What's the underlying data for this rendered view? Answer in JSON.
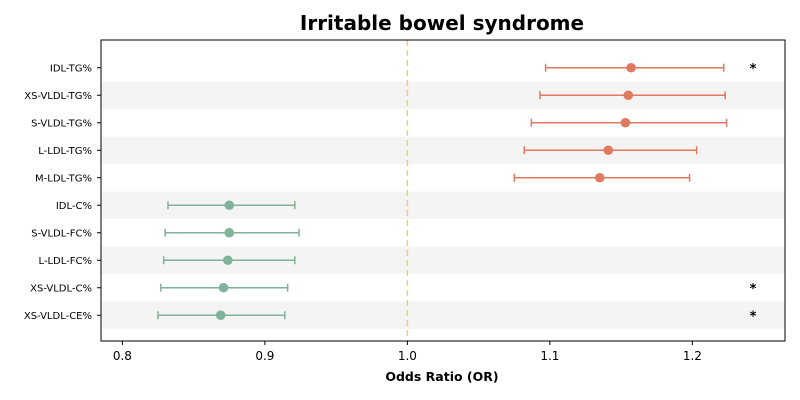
{
  "chart_data": {
    "type": "forest",
    "title": "Irritable bowel syndrome",
    "xlabel": "Odds Ratio (OR)",
    "xlim": [
      0.785,
      1.265
    ],
    "xticks": [
      0.8,
      0.9,
      1.0,
      1.1,
      1.2
    ],
    "xtick_labels": [
      "0.8",
      "0.9",
      "1.0",
      "1.1",
      "1.2"
    ],
    "reference_line": 1.0,
    "reference_color": "#f5c77e",
    "colors": {
      "positive": "#e07a5f",
      "negative": "#81b29a",
      "band": "#f4f4f4"
    },
    "rows": [
      {
        "label": "IDL-TG%",
        "or": 1.157,
        "lo": 1.097,
        "hi": 1.222,
        "significant": true
      },
      {
        "label": "XS-VLDL-TG%",
        "or": 1.155,
        "lo": 1.093,
        "hi": 1.223,
        "significant": false
      },
      {
        "label": "S-VLDL-TG%",
        "or": 1.153,
        "lo": 1.087,
        "hi": 1.224,
        "significant": false
      },
      {
        "label": "L-LDL-TG%",
        "or": 1.141,
        "lo": 1.082,
        "hi": 1.203,
        "significant": false
      },
      {
        "label": "M-LDL-TG%",
        "or": 1.135,
        "lo": 1.075,
        "hi": 1.198,
        "significant": false
      },
      {
        "label": "IDL-C%",
        "or": 0.875,
        "lo": 0.832,
        "hi": 0.921,
        "significant": false
      },
      {
        "label": "S-VLDL-FC%",
        "or": 0.875,
        "lo": 0.83,
        "hi": 0.924,
        "significant": false
      },
      {
        "label": "L-LDL-FC%",
        "or": 0.874,
        "lo": 0.829,
        "hi": 0.921,
        "significant": false
      },
      {
        "label": "XS-VLDL-C%",
        "or": 0.871,
        "lo": 0.827,
        "hi": 0.916,
        "significant": true
      },
      {
        "label": "XS-VLDL-CE%",
        "or": 0.869,
        "lo": 0.825,
        "hi": 0.914,
        "significant": true
      }
    ],
    "significance_marker": "*",
    "grid": false
  }
}
